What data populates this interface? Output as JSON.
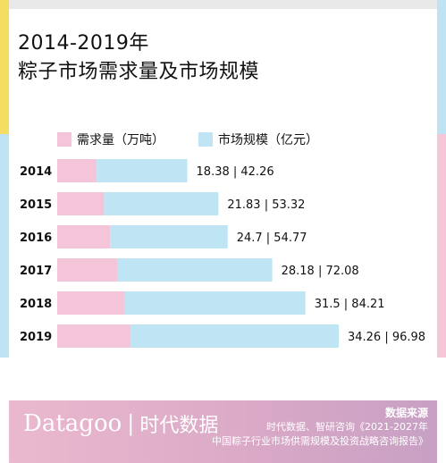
{
  "title_line1": "2014-2019年",
  "title_line2": "粽子市场需求量及市场规模",
  "legend": [
    {
      "label": "需求量（万吨）",
      "color": "#f4c5d8"
    },
    {
      "label": "市场规模（亿元）",
      "color": "#bfe5f5"
    }
  ],
  "chart_data": {
    "type": "bar",
    "orientation": "horizontal",
    "stacked": true,
    "categories": [
      "2014",
      "2015",
      "2016",
      "2017",
      "2018",
      "2019"
    ],
    "series": [
      {
        "name": "需求量（万吨）",
        "values": [
          18.38,
          21.83,
          24.7,
          28.18,
          31.5,
          34.26
        ],
        "color": "#f4c5d8"
      },
      {
        "name": "市场规模（亿元）",
        "values": [
          42.26,
          53.32,
          54.77,
          72.08,
          84.21,
          96.98
        ],
        "color": "#bfe5f5"
      }
    ],
    "data_labels": [
      "18.38 | 42.26",
      "21.83 | 53.32",
      "24.7 | 54.77",
      "28.18 | 72.08",
      "31.5 | 84.21",
      "34.26 | 96.98"
    ],
    "grid": false
  },
  "footer": {
    "brand_en": "Datagoo",
    "brand_sep": "|",
    "brand_cn": "时代数据",
    "source_title": "数据来源",
    "source_line1": "时代数据、智研咨询《2021-2027年",
    "source_line2": "中国粽子行业市场供需规模及投资战略咨询报告》"
  }
}
